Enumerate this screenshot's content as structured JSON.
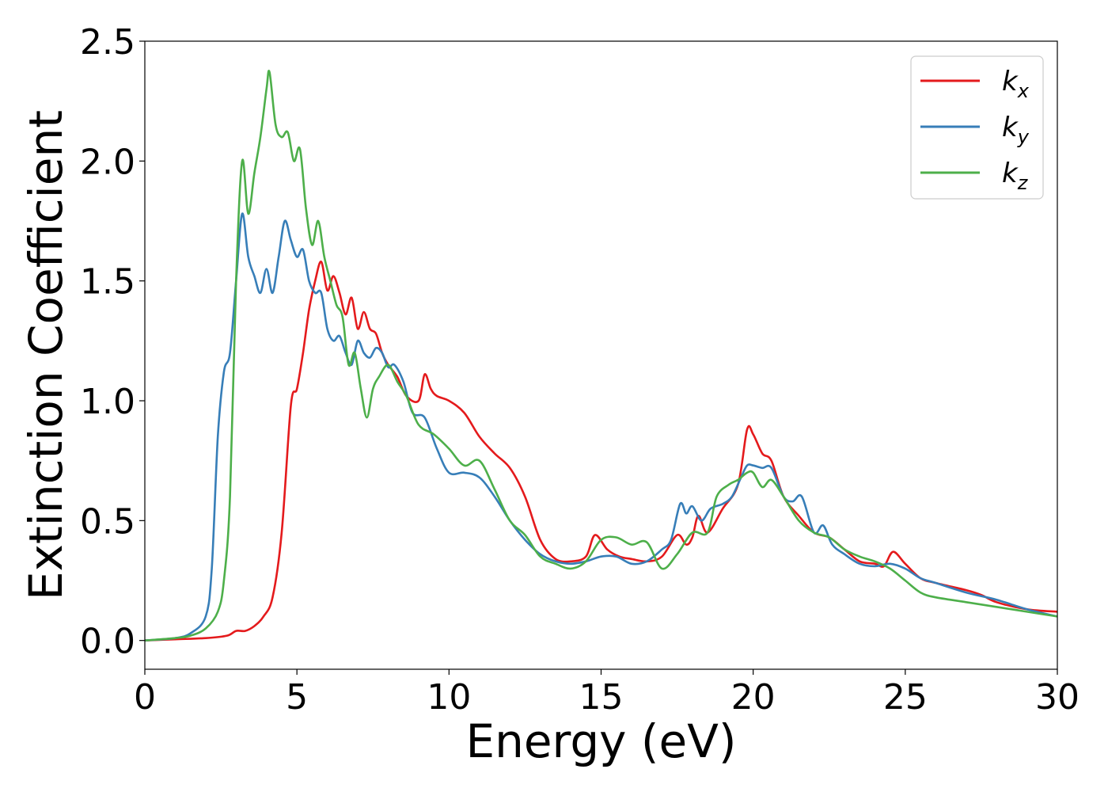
{
  "chart_data": {
    "type": "line",
    "xlabel": "Energy (eV)",
    "ylabel": "Extinction Coefficient",
    "xlim": [
      0,
      30
    ],
    "ylim": [
      -0.12,
      2.5
    ],
    "xticks": [
      0,
      5,
      10,
      15,
      20,
      25,
      30
    ],
    "xtick_labels": [
      "0",
      "5",
      "10",
      "15",
      "20",
      "25",
      "30"
    ],
    "yticks": [
      0.0,
      0.5,
      1.0,
      1.5,
      2.0,
      2.5
    ],
    "ytick_labels": [
      "0.0",
      "0.5",
      "1.0",
      "1.5",
      "2.0",
      "2.5"
    ],
    "grid": false,
    "legend_position": "top-right",
    "series": [
      {
        "name": "k",
        "subscript": "x",
        "color": "#e41a1c",
        "x": [
          0,
          1,
          2,
          2.7,
          3.0,
          3.3,
          3.6,
          3.9,
          4.2,
          4.5,
          4.8,
          5.0,
          5.2,
          5.4,
          5.6,
          5.8,
          6.0,
          6.2,
          6.4,
          6.6,
          6.8,
          7.0,
          7.2,
          7.4,
          7.6,
          7.8,
          8.0,
          8.3,
          8.6,
          9.0,
          9.2,
          9.4,
          9.6,
          10.0,
          10.5,
          11.0,
          11.5,
          12.0,
          12.5,
          13.0,
          13.5,
          14.0,
          14.5,
          14.8,
          15.2,
          15.6,
          16.0,
          16.5,
          17.0,
          17.5,
          17.8,
          18.0,
          18.2,
          18.5,
          19.0,
          19.5,
          19.8,
          20.0,
          20.3,
          20.6,
          21.0,
          21.5,
          22.0,
          22.5,
          23.0,
          23.5,
          24.0,
          24.3,
          24.6,
          25.0,
          25.5,
          26.0,
          27.0,
          27.5,
          28.0,
          29.0,
          30.0
        ],
        "y": [
          0.0,
          0.005,
          0.01,
          0.02,
          0.04,
          0.04,
          0.06,
          0.1,
          0.18,
          0.45,
          0.98,
          1.05,
          1.2,
          1.38,
          1.5,
          1.58,
          1.46,
          1.52,
          1.45,
          1.36,
          1.43,
          1.3,
          1.37,
          1.3,
          1.28,
          1.2,
          1.15,
          1.1,
          1.02,
          1.0,
          1.11,
          1.05,
          1.02,
          1.0,
          0.95,
          0.85,
          0.78,
          0.72,
          0.6,
          0.42,
          0.34,
          0.33,
          0.35,
          0.44,
          0.38,
          0.35,
          0.34,
          0.33,
          0.35,
          0.44,
          0.4,
          0.43,
          0.52,
          0.45,
          0.55,
          0.65,
          0.88,
          0.86,
          0.78,
          0.75,
          0.6,
          0.52,
          0.45,
          0.43,
          0.38,
          0.33,
          0.32,
          0.31,
          0.37,
          0.32,
          0.26,
          0.24,
          0.21,
          0.19,
          0.16,
          0.13,
          0.12
        ]
      },
      {
        "name": "k",
        "subscript": "y",
        "color": "#377eb8",
        "x": [
          0,
          1,
          1.5,
          2.0,
          2.2,
          2.4,
          2.6,
          2.8,
          3.0,
          3.2,
          3.4,
          3.6,
          3.8,
          4.0,
          4.2,
          4.4,
          4.6,
          4.8,
          5.0,
          5.2,
          5.4,
          5.6,
          5.8,
          6.0,
          6.2,
          6.4,
          6.6,
          6.8,
          7.0,
          7.2,
          7.4,
          7.6,
          7.8,
          8.0,
          8.2,
          8.5,
          8.8,
          9.2,
          9.6,
          10.0,
          10.5,
          11.0,
          11.5,
          12.0,
          12.5,
          13.0,
          13.5,
          14.0,
          14.5,
          15.0,
          15.5,
          16.0,
          16.5,
          17.0,
          17.3,
          17.6,
          17.8,
          18.0,
          18.3,
          18.6,
          19.0,
          19.3,
          19.6,
          19.8,
          20.0,
          20.3,
          20.6,
          21.0,
          21.3,
          21.6,
          22.0,
          22.3,
          22.6,
          23.0,
          23.5,
          24.0,
          24.5,
          25.0,
          25.5,
          26.0,
          27.0,
          28.0,
          29.0,
          30.0
        ],
        "y": [
          0.0,
          0.01,
          0.03,
          0.1,
          0.3,
          0.85,
          1.12,
          1.2,
          1.5,
          1.78,
          1.6,
          1.52,
          1.45,
          1.55,
          1.45,
          1.6,
          1.75,
          1.67,
          1.6,
          1.63,
          1.5,
          1.45,
          1.45,
          1.3,
          1.25,
          1.27,
          1.2,
          1.15,
          1.25,
          1.2,
          1.18,
          1.22,
          1.2,
          1.14,
          1.15,
          1.08,
          0.95,
          0.93,
          0.8,
          0.7,
          0.7,
          0.68,
          0.6,
          0.5,
          0.42,
          0.36,
          0.33,
          0.32,
          0.33,
          0.35,
          0.35,
          0.32,
          0.33,
          0.38,
          0.42,
          0.57,
          0.53,
          0.56,
          0.5,
          0.55,
          0.57,
          0.6,
          0.68,
          0.73,
          0.73,
          0.72,
          0.72,
          0.6,
          0.58,
          0.6,
          0.45,
          0.48,
          0.4,
          0.36,
          0.32,
          0.31,
          0.32,
          0.3,
          0.26,
          0.24,
          0.2,
          0.17,
          0.13,
          0.1
        ]
      },
      {
        "name": "k",
        "subscript": "z",
        "color": "#4daf4a",
        "x": [
          0,
          1,
          1.5,
          2.0,
          2.4,
          2.6,
          2.8,
          3.0,
          3.2,
          3.4,
          3.6,
          3.8,
          4.0,
          4.1,
          4.3,
          4.5,
          4.7,
          4.9,
          5.1,
          5.3,
          5.5,
          5.7,
          5.9,
          6.1,
          6.3,
          6.5,
          6.7,
          6.9,
          7.1,
          7.3,
          7.5,
          7.7,
          8.0,
          8.3,
          8.6,
          9.0,
          9.5,
          10.0,
          10.5,
          11.0,
          11.5,
          12.0,
          12.5,
          13.0,
          13.5,
          14.0,
          14.5,
          15.0,
          15.5,
          16.0,
          16.5,
          17.0,
          17.5,
          18.0,
          18.5,
          18.8,
          19.2,
          19.5,
          19.8,
          20.0,
          20.3,
          20.6,
          21.0,
          21.5,
          22.0,
          22.5,
          23.0,
          23.5,
          24.0,
          24.5,
          25.0,
          25.5,
          26.0,
          27.0,
          28.0,
          29.0,
          30.0
        ],
        "y": [
          0.0,
          0.01,
          0.02,
          0.05,
          0.12,
          0.25,
          0.6,
          1.5,
          2.0,
          1.78,
          1.95,
          2.1,
          2.3,
          2.37,
          2.15,
          2.1,
          2.12,
          2.0,
          2.05,
          1.8,
          1.65,
          1.75,
          1.6,
          1.5,
          1.4,
          1.35,
          1.15,
          1.2,
          1.05,
          0.93,
          1.05,
          1.1,
          1.15,
          1.08,
          1.02,
          0.9,
          0.86,
          0.8,
          0.73,
          0.75,
          0.63,
          0.5,
          0.44,
          0.35,
          0.32,
          0.3,
          0.33,
          0.42,
          0.43,
          0.4,
          0.41,
          0.3,
          0.36,
          0.45,
          0.45,
          0.6,
          0.65,
          0.67,
          0.7,
          0.7,
          0.64,
          0.67,
          0.6,
          0.5,
          0.45,
          0.43,
          0.38,
          0.35,
          0.33,
          0.3,
          0.25,
          0.2,
          0.18,
          0.16,
          0.14,
          0.12,
          0.1
        ]
      }
    ]
  }
}
